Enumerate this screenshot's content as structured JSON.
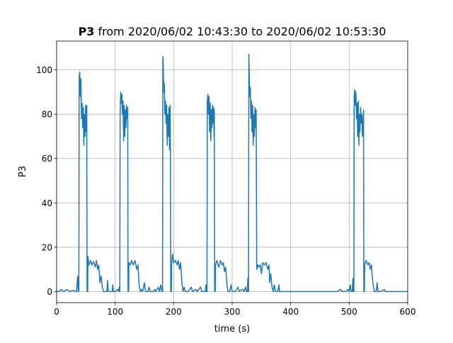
{
  "chart_data": {
    "type": "line",
    "title_bold": "P3",
    "title_rest": " from 2020/06/02 10:43:30 to 2020/06/02 10:53:30",
    "xlabel": "time (s)",
    "ylabel": "P3",
    "xlim": [
      0,
      600
    ],
    "ylim": [
      -5,
      113
    ],
    "xticks": [
      0,
      100,
      200,
      300,
      400,
      500,
      600
    ],
    "yticks": [
      0,
      20,
      40,
      60,
      80,
      100
    ],
    "grid": true,
    "color": "#1f77b4",
    "series": [
      {
        "points": [
          [
            0,
            0
          ],
          [
            5,
            0
          ],
          [
            8,
            1
          ],
          [
            12,
            0
          ],
          [
            18,
            1
          ],
          [
            22,
            0
          ],
          [
            28,
            0.5
          ],
          [
            34,
            0
          ],
          [
            36,
            7
          ],
          [
            37,
            0
          ],
          [
            38,
            0
          ],
          [
            38.5,
            97
          ],
          [
            39.5,
            99
          ],
          [
            40.5,
            88
          ],
          [
            41.5,
            96
          ],
          [
            42.5,
            78
          ],
          [
            43.5,
            85
          ],
          [
            44.5,
            74
          ],
          [
            45.5,
            83
          ],
          [
            46.5,
            66
          ],
          [
            47.5,
            80
          ],
          [
            48.5,
            70
          ],
          [
            49.5,
            84
          ],
          [
            50.5,
            72
          ],
          [
            51.5,
            84
          ],
          [
            52,
            0
          ],
          [
            53,
            0
          ],
          [
            53.5,
            16
          ],
          [
            55,
            12
          ],
          [
            58,
            14
          ],
          [
            60,
            12
          ],
          [
            63,
            13.5
          ],
          [
            66,
            11
          ],
          [
            68,
            14
          ],
          [
            70,
            10
          ],
          [
            72,
            12
          ],
          [
            74,
            4
          ],
          [
            76,
            7
          ],
          [
            78,
            2
          ],
          [
            80,
            0
          ],
          [
            86,
            0
          ],
          [
            87,
            5
          ],
          [
            88,
            0
          ],
          [
            95,
            0
          ],
          [
            96,
            3
          ],
          [
            97,
            0
          ],
          [
            100,
            0
          ],
          [
            104,
            1
          ],
          [
            106,
            0
          ],
          [
            107,
            2
          ],
          [
            108,
            0
          ],
          [
            108.5,
            80
          ],
          [
            109.5,
            90
          ],
          [
            110.5,
            85
          ],
          [
            111.5,
            89
          ],
          [
            112.5,
            80
          ],
          [
            113.5,
            86
          ],
          [
            114.5,
            68
          ],
          [
            115.5,
            84
          ],
          [
            116.5,
            70
          ],
          [
            117.5,
            82
          ],
          [
            118.5,
            74
          ],
          [
            119.5,
            84
          ],
          [
            120.5,
            78
          ],
          [
            121.5,
            83
          ],
          [
            122,
            0
          ],
          [
            123,
            0
          ],
          [
            123.5,
            13
          ],
          [
            126,
            12
          ],
          [
            128,
            14
          ],
          [
            131,
            12
          ],
          [
            134,
            14
          ],
          [
            137,
            10
          ],
          [
            139,
            12
          ],
          [
            141,
            3
          ],
          [
            143,
            0
          ],
          [
            145,
            1
          ],
          [
            147,
            0
          ],
          [
            150,
            4
          ],
          [
            152,
            0
          ],
          [
            156,
            0
          ],
          [
            158,
            2
          ],
          [
            160,
            0
          ],
          [
            165,
            0
          ],
          [
            168,
            1
          ],
          [
            170,
            0
          ],
          [
            174,
            2
          ],
          [
            176,
            0
          ],
          [
            178,
            3
          ],
          [
            180,
            0
          ],
          [
            181,
            0
          ],
          [
            181.5,
            106
          ],
          [
            182.2,
            102
          ],
          [
            183,
            90
          ],
          [
            184,
            94
          ],
          [
            185,
            80
          ],
          [
            186,
            86
          ],
          [
            187,
            76
          ],
          [
            188,
            84
          ],
          [
            189,
            66
          ],
          [
            190,
            80
          ],
          [
            191,
            70
          ],
          [
            192,
            83
          ],
          [
            193,
            64
          ],
          [
            194,
            84
          ],
          [
            194.5,
            62
          ],
          [
            195,
            0
          ],
          [
            196,
            0
          ],
          [
            196.5,
            12
          ],
          [
            198,
            17
          ],
          [
            200,
            13
          ],
          [
            203,
            14
          ],
          [
            206,
            12
          ],
          [
            208,
            14
          ],
          [
            210,
            10
          ],
          [
            212,
            13
          ],
          [
            214,
            4
          ],
          [
            216,
            0
          ],
          [
            218,
            2
          ],
          [
            220,
            0
          ],
          [
            225,
            0
          ],
          [
            230,
            2
          ],
          [
            232,
            0
          ],
          [
            238,
            1
          ],
          [
            240,
            0
          ],
          [
            246,
            2
          ],
          [
            248,
            0
          ],
          [
            254,
            0
          ],
          [
            255,
            3
          ],
          [
            256,
            0
          ],
          [
            257,
            0
          ],
          [
            257.5,
            86
          ],
          [
            258.5,
            89
          ],
          [
            259.5,
            80
          ],
          [
            260.5,
            88
          ],
          [
            261.5,
            72
          ],
          [
            262.5,
            85
          ],
          [
            263.5,
            68
          ],
          [
            264.5,
            82
          ],
          [
            265.5,
            74
          ],
          [
            266.5,
            84
          ],
          [
            267.5,
            76
          ],
          [
            268.5,
            83
          ],
          [
            269,
            70
          ],
          [
            269.5,
            82
          ],
          [
            270,
            0
          ],
          [
            271,
            0
          ],
          [
            271.5,
            12
          ],
          [
            274,
            14
          ],
          [
            277,
            11
          ],
          [
            280,
            14
          ],
          [
            283,
            12
          ],
          [
            285,
            13
          ],
          [
            287,
            9
          ],
          [
            289,
            11
          ],
          [
            291,
            3
          ],
          [
            293,
            0
          ],
          [
            296,
            0
          ],
          [
            298,
            3
          ],
          [
            300,
            0
          ],
          [
            305,
            0
          ],
          [
            310,
            2
          ],
          [
            312,
            0
          ],
          [
            318,
            1
          ],
          [
            320,
            0
          ],
          [
            323,
            2
          ],
          [
            324,
            0
          ],
          [
            326,
            0
          ],
          [
            326.8,
            6
          ],
          [
            327.2,
            0
          ],
          [
            328,
            0
          ],
          [
            328.5,
            107
          ],
          [
            329.3,
            96
          ],
          [
            330,
            88
          ],
          [
            331,
            92
          ],
          [
            332,
            78
          ],
          [
            333,
            86
          ],
          [
            334,
            72
          ],
          [
            335,
            84
          ],
          [
            336,
            66
          ],
          [
            337,
            80
          ],
          [
            338,
            70
          ],
          [
            339,
            83
          ],
          [
            340,
            74
          ],
          [
            341,
            82
          ],
          [
            342,
            10
          ],
          [
            344,
            12
          ],
          [
            346,
            11
          ],
          [
            348,
            12
          ],
          [
            350,
            8
          ],
          [
            352,
            13
          ],
          [
            355,
            12
          ],
          [
            358,
            13
          ],
          [
            361,
            10
          ],
          [
            363,
            12
          ],
          [
            364,
            4
          ],
          [
            366,
            8
          ],
          [
            368,
            2
          ],
          [
            370,
            0
          ],
          [
            372,
            3
          ],
          [
            374,
            0
          ],
          [
            378,
            0
          ],
          [
            380,
            3
          ],
          [
            381,
            0
          ],
          [
            390,
            0
          ],
          [
            400,
            0
          ],
          [
            420,
            0
          ],
          [
            440,
            0
          ],
          [
            460,
            0
          ],
          [
            480,
            0
          ],
          [
            485,
            1
          ],
          [
            488,
            0
          ],
          [
            495,
            0
          ],
          [
            498,
            1
          ],
          [
            500,
            0
          ],
          [
            502,
            3
          ],
          [
            503,
            0
          ],
          [
            505,
            0
          ],
          [
            506.5,
            6
          ],
          [
            507,
            0
          ],
          [
            508,
            0
          ],
          [
            508.5,
            88
          ],
          [
            509.5,
            91
          ],
          [
            510.5,
            84
          ],
          [
            511.5,
            90
          ],
          [
            512.5,
            78
          ],
          [
            513.5,
            85
          ],
          [
            514.5,
            70
          ],
          [
            515.5,
            86
          ],
          [
            516.5,
            66
          ],
          [
            517.5,
            80
          ],
          [
            518.5,
            72
          ],
          [
            519.5,
            83
          ],
          [
            520.5,
            76
          ],
          [
            521.5,
            80
          ],
          [
            522.5,
            70
          ],
          [
            524.5,
            82
          ],
          [
            525,
            0
          ],
          [
            526,
            0
          ],
          [
            526.5,
            12
          ],
          [
            529,
            14
          ],
          [
            532,
            12
          ],
          [
            534,
            13
          ],
          [
            536,
            10
          ],
          [
            538,
            12
          ],
          [
            540,
            5
          ],
          [
            541,
            3
          ],
          [
            543,
            0
          ],
          [
            546,
            0
          ],
          [
            548,
            4
          ],
          [
            549,
            0
          ],
          [
            555,
            0
          ],
          [
            560,
            1
          ],
          [
            562,
            0
          ],
          [
            570,
            0
          ],
          [
            580,
            0
          ],
          [
            590,
            0
          ],
          [
            600,
            0
          ]
        ]
      }
    ]
  }
}
